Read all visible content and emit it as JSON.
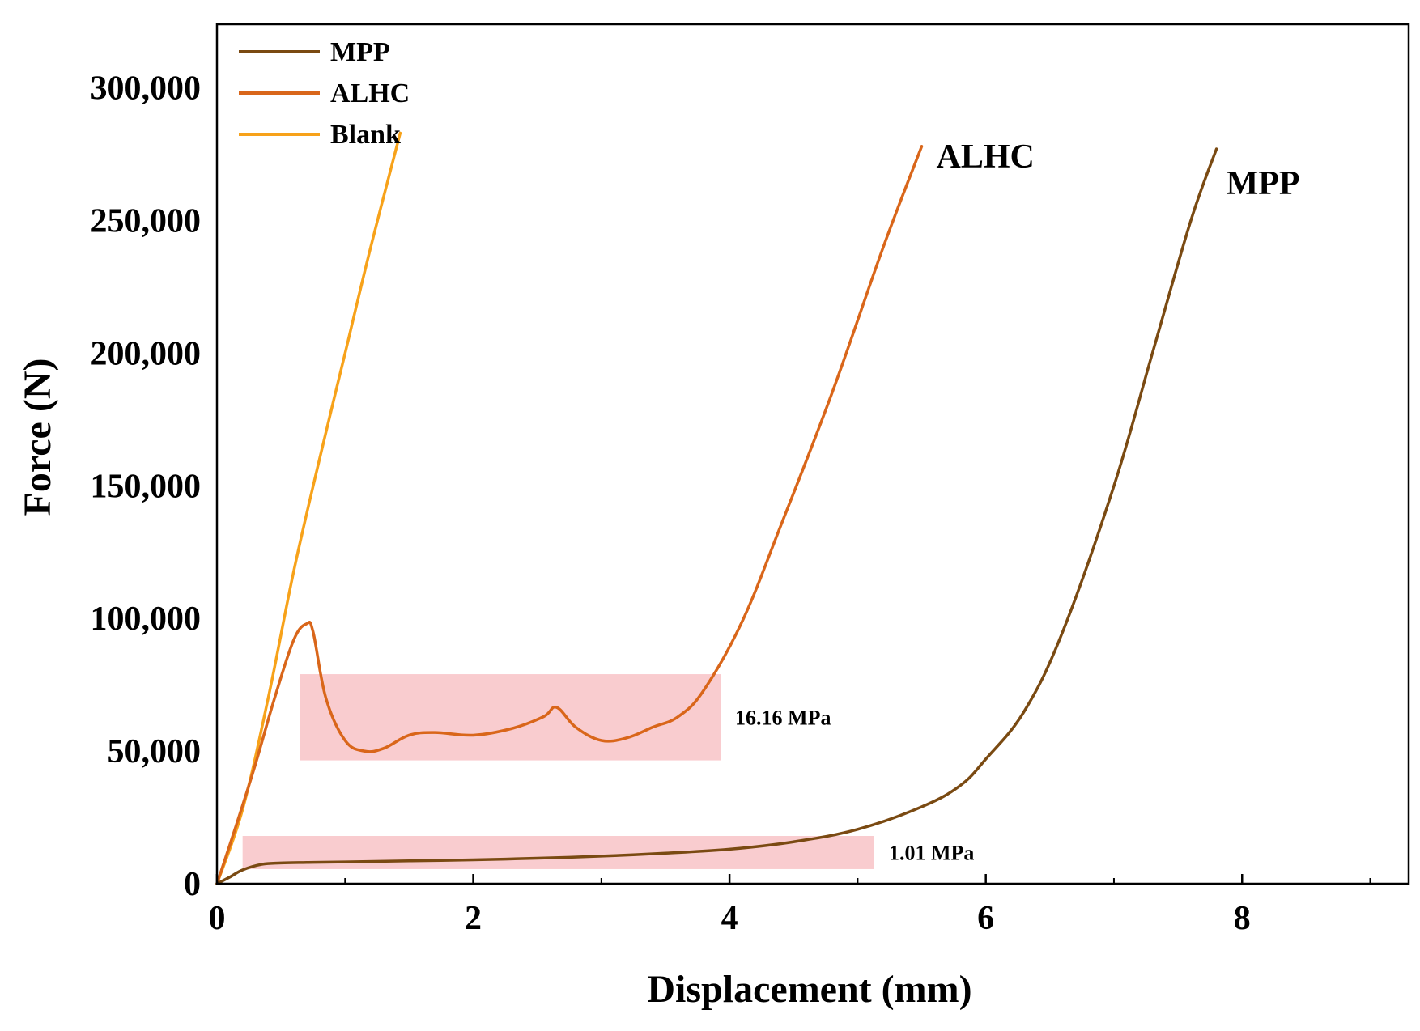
{
  "chart_data": {
    "type": "line",
    "title": "",
    "xlabel": "Displacement (mm)",
    "ylabel": "Force (N)",
    "xlim": [
      0,
      9.3
    ],
    "ylim": [
      0,
      324000
    ],
    "x_ticks": [
      0,
      2,
      4,
      6,
      8
    ],
    "x_tick_labels": [
      "0",
      "2",
      "4",
      "6",
      "8"
    ],
    "y_ticks": [
      0,
      50000,
      100000,
      150000,
      200000,
      250000,
      300000
    ],
    "y_tick_labels": [
      "0",
      "50,000",
      "100,000",
      "150,000",
      "200,000",
      "250,000",
      "300,000"
    ],
    "grid": false,
    "legend_position": "top-left",
    "series": [
      {
        "name": "MPP",
        "color": "#7a4a12",
        "end_label": "MPP",
        "x": [
          0,
          0.1,
          0.2,
          0.35,
          0.5,
          0.7,
          1,
          1.5,
          2,
          2.5,
          3,
          3.5,
          4,
          4.5,
          5,
          5.5,
          5.8,
          6,
          6.3,
          6.6,
          7,
          7.3,
          7.6,
          7.8
        ],
        "y": [
          0,
          2500,
          5200,
          7300,
          7800,
          8000,
          8200,
          8600,
          9000,
          9600,
          10400,
          11500,
          13000,
          15800,
          20500,
          29000,
          37000,
          47000,
          65000,
          95000,
          150000,
          200000,
          250000,
          277000
        ]
      },
      {
        "name": "ALHC",
        "color": "#d9661a",
        "end_label": "ALHC",
        "x": [
          0,
          0.15,
          0.3,
          0.45,
          0.6,
          0.7,
          0.75,
          0.85,
          1,
          1.15,
          1.3,
          1.5,
          1.7,
          2,
          2.3,
          2.55,
          2.65,
          2.8,
          3,
          3.2,
          3.4,
          3.6,
          3.8,
          4.1,
          4.4,
          4.8,
          5.2,
          5.5
        ],
        "y": [
          0,
          22000,
          45000,
          70000,
          92000,
          98000,
          95000,
          70000,
          54000,
          50000,
          51000,
          56000,
          57000,
          56000,
          58500,
          63000,
          66500,
          59000,
          54000,
          55000,
          59000,
          63000,
          73000,
          99000,
          135000,
          185000,
          240000,
          278000
        ]
      },
      {
        "name": "Blank",
        "color": "#f7a21a",
        "end_label": "",
        "x": [
          0,
          0.2,
          0.4,
          0.6,
          0.8,
          1,
          1.2,
          1.43
        ],
        "y": [
          0,
          28000,
          70000,
          118000,
          160000,
          200000,
          240000,
          283000
        ]
      }
    ],
    "bands": [
      {
        "label": "16.16 MPa",
        "color": "#f9c9cc",
        "x_range": [
          0.65,
          3.93
        ],
        "y_range": [
          46500,
          79000
        ]
      },
      {
        "label": "1.01 MPa",
        "color": "#f9c9cc",
        "x_range": [
          0.2,
          5.13
        ],
        "y_range": [
          5500,
          18000
        ]
      }
    ]
  }
}
